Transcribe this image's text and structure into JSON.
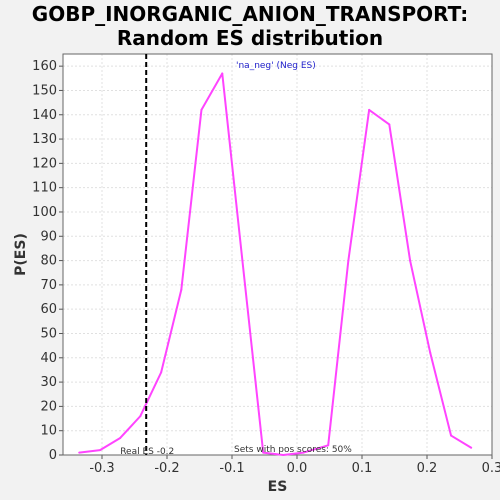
{
  "chart_data": {
    "type": "line",
    "title_line1": "GOBP_INORGANIC_ANION_TRANSPORT:",
    "title_line2": "Random ES distribution",
    "xlabel": "ES",
    "ylabel": "P(ES)",
    "xlim": [
      -0.36,
      0.3
    ],
    "ylim": [
      0,
      165
    ],
    "x_ticks": [
      -0.3,
      -0.2,
      -0.1,
      0.0,
      0.1,
      0.2,
      0.3
    ],
    "x_tick_labels": [
      "-0.3",
      "-0.2",
      "-0.1",
      "0.0",
      "0.1",
      "0.2",
      "0.3"
    ],
    "y_ticks": [
      0,
      10,
      20,
      30,
      40,
      50,
      60,
      70,
      80,
      90,
      100,
      110,
      120,
      130,
      140,
      150,
      160
    ],
    "grid": true,
    "series": [
      {
        "color": "#ff44ff",
        "x": [
          -0.335,
          -0.303,
          -0.272,
          -0.241,
          -0.209,
          -0.178,
          -0.147,
          -0.115,
          -0.084,
          -0.052,
          -0.021,
          0.01,
          0.048,
          0.079,
          0.111,
          0.142,
          0.174,
          0.205,
          0.237,
          0.268
        ],
        "y": [
          1,
          2,
          7,
          16,
          34,
          68,
          142,
          157,
          80,
          1,
          0,
          1,
          4,
          80,
          142,
          136,
          80,
          42,
          8,
          3
        ]
      }
    ],
    "real_es": {
      "x": -0.232,
      "label": "Real ES -0.2",
      "color": "#000000"
    },
    "annotations": {
      "neg_label": "'na_neg' (Neg ES)",
      "neg_label_color": "#2222cc",
      "pos_text": "Sets with pos scores: 50%"
    },
    "colors": {
      "background": "#f2f2f2",
      "plot_bg": "#ffffff",
      "grid": "#e0e0e0"
    }
  }
}
